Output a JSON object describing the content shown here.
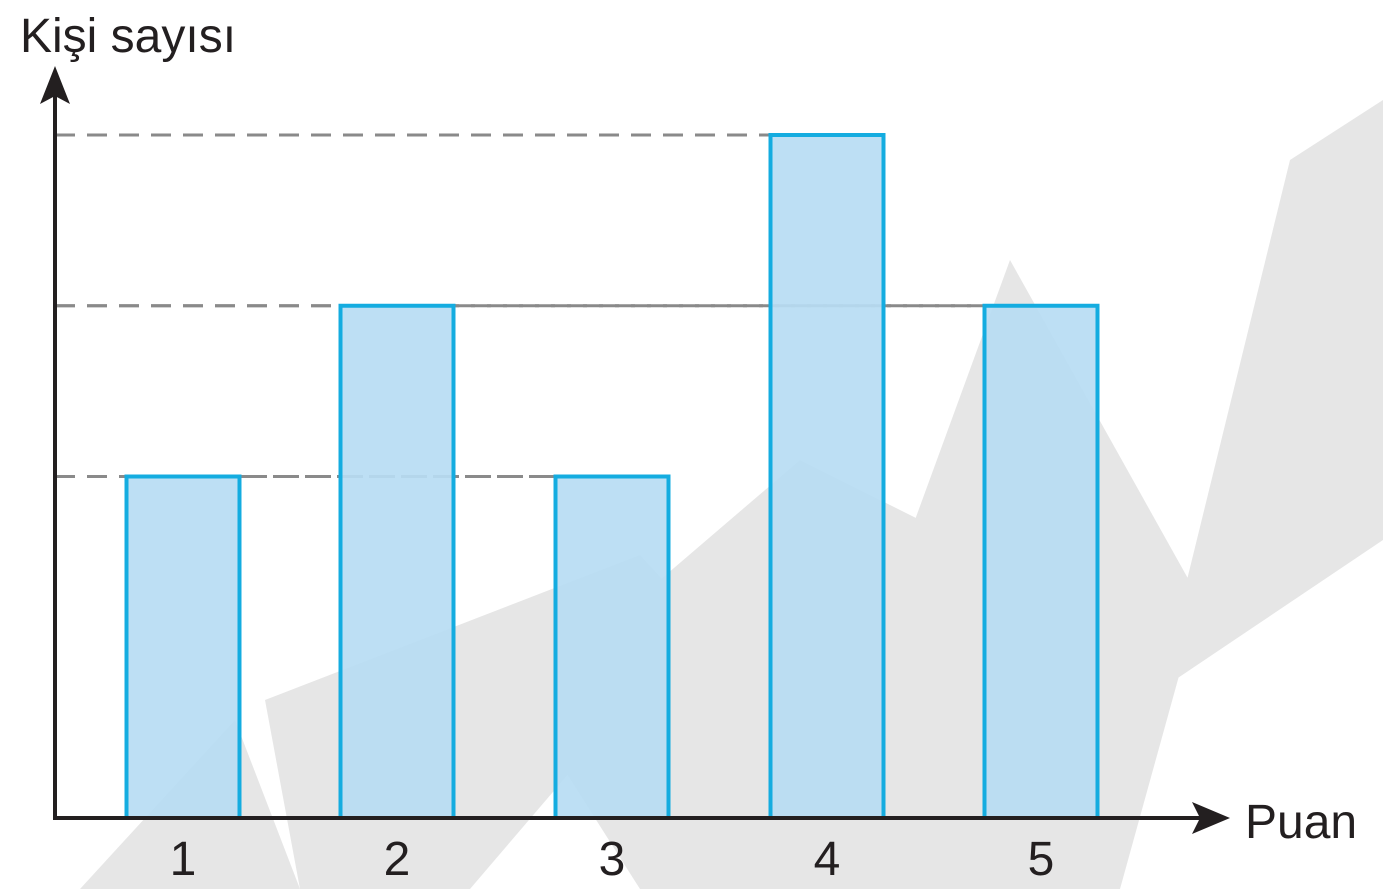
{
  "chart_data": {
    "type": "bar",
    "title": "",
    "xlabel": "Puan",
    "ylabel": "Kişi sayısı",
    "categories": [
      "1",
      "2",
      "3",
      "4",
      "5"
    ],
    "values": [
      2,
      3,
      2,
      4,
      3
    ],
    "ylim": [
      0,
      4.3
    ],
    "grid": "dashed horizontal guide lines at bar heights",
    "bar_color": "#b7dcf3",
    "bar_edge_color": "#14ace0",
    "guide_color": "#8a8a8a",
    "axis_color": "#231f20"
  }
}
